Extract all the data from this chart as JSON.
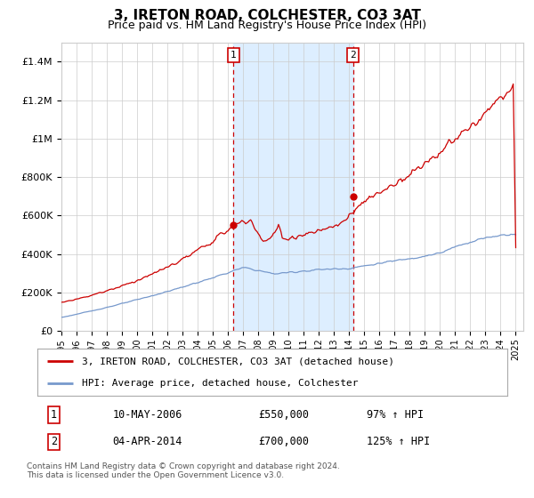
{
  "title": "3, IRETON ROAD, COLCHESTER, CO3 3AT",
  "subtitle": "Price paid vs. HM Land Registry's House Price Index (HPI)",
  "title_fontsize": 11,
  "subtitle_fontsize": 9,
  "xlim_start": 1995.0,
  "xlim_end": 2025.5,
  "ylim": [
    0,
    1500000
  ],
  "yticks": [
    0,
    200000,
    400000,
    600000,
    800000,
    1000000,
    1200000,
    1400000
  ],
  "ytick_labels": [
    "£0",
    "£200K",
    "£400K",
    "£600K",
    "£800K",
    "£1M",
    "£1.2M",
    "£1.4M"
  ],
  "xtick_years": [
    1995,
    1996,
    1997,
    1998,
    1999,
    2000,
    2001,
    2002,
    2003,
    2004,
    2005,
    2006,
    2007,
    2008,
    2009,
    2010,
    2011,
    2012,
    2013,
    2014,
    2015,
    2016,
    2017,
    2018,
    2019,
    2020,
    2021,
    2022,
    2023,
    2024,
    2025
  ],
  "sale1_x": 2006.36,
  "sale1_y": 550000,
  "sale2_x": 2014.25,
  "sale2_y": 700000,
  "shade_x1": 2006.36,
  "shade_x2": 2014.25,
  "shade_color": "#ddeeff",
  "vline_color": "#cc0000",
  "marker_color": "#cc0000",
  "red_line_color": "#cc0000",
  "blue_line_color": "#7799cc",
  "legend_label_red": "3, IRETON ROAD, COLCHESTER, CO3 3AT (detached house)",
  "legend_label_blue": "HPI: Average price, detached house, Colchester",
  "annot1_label": "1",
  "annot2_label": "2",
  "annot1_date": "10-MAY-2006",
  "annot1_price": "£550,000",
  "annot1_hpi": "97% ↑ HPI",
  "annot2_date": "04-APR-2014",
  "annot2_price": "£700,000",
  "annot2_hpi": "125% ↑ HPI",
  "footer": "Contains HM Land Registry data © Crown copyright and database right 2024.\nThis data is licensed under the Open Government Licence v3.0.",
  "grid_color": "#cccccc",
  "bg_color": "#ffffff",
  "plot_bg_color": "#ffffff"
}
